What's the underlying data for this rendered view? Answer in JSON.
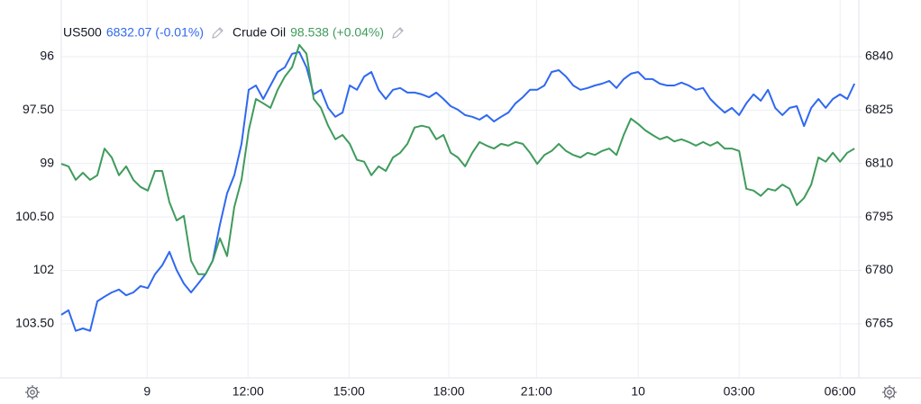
{
  "chart_data": {
    "type": "line",
    "xlim": [
      0,
      110.6
    ],
    "xticks": [
      {
        "value": 11.9,
        "label": "9"
      },
      {
        "value": 25.9,
        "label": "12:00"
      },
      {
        "value": 39.9,
        "label": "15:00"
      },
      {
        "value": 53.75,
        "label": "18:00"
      },
      {
        "value": 65.9,
        "label": "21:00"
      },
      {
        "value": 80,
        "label": "10"
      },
      {
        "value": 94,
        "label": "03:00"
      },
      {
        "value": 108,
        "label": "06:00"
      }
    ],
    "ylim": [
      105.02,
      94.41
    ],
    "yticks": [
      96,
      {
        "value": 97.5,
        "label": "97.50"
      },
      99,
      {
        "value": 100.5,
        "label": "100.50"
      },
      102,
      {
        "value": 103.5,
        "label": "103.50"
      }
    ],
    "y2lim": [
      6749.8,
      6855.9
    ],
    "y2ticks": [
      6840,
      6825,
      6810,
      6795,
      6780,
      6765
    ],
    "grid": true,
    "series": [
      {
        "name": "US500",
        "legend_value": "6832.07 (-0.01%)",
        "color": "#2f68f0",
        "axis": "y2",
        "values": [
          6767.5,
          6768.8,
          6763,
          6763.7,
          6763,
          6771.3,
          6772.6,
          6773.8,
          6774.6,
          6773,
          6773.8,
          6775.6,
          6775,
          6778.9,
          6781.4,
          6785.2,
          6780.1,
          6776.3,
          6773.8,
          6776.3,
          6778.9,
          6782.7,
          6792.8,
          6801.6,
          6806.7,
          6815.5,
          6830.7,
          6831.9,
          6828.1,
          6831.9,
          6835.7,
          6837,
          6840.8,
          6841.3,
          6837,
          6829.4,
          6830.7,
          6825.6,
          6823.1,
          6824.3,
          6831.9,
          6830.7,
          6834.4,
          6835.7,
          6830.7,
          6828.1,
          6830.7,
          6831.2,
          6829.9,
          6829.9,
          6829.4,
          6828.6,
          6829.9,
          6828.1,
          6826.1,
          6825.1,
          6823.6,
          6823.1,
          6822.3,
          6823.6,
          6821.8,
          6823.1,
          6824.3,
          6826.9,
          6828.6,
          6830.7,
          6830.7,
          6831.9,
          6835.7,
          6836.2,
          6834.4,
          6831.9,
          6830.7,
          6831.2,
          6831.9,
          6832.4,
          6833.2,
          6831.2,
          6833.7,
          6835.2,
          6835.7,
          6833.7,
          6833.7,
          6832.4,
          6831.9,
          6831.9,
          6832.7,
          6831.9,
          6830.7,
          6831.2,
          6828.1,
          6826.1,
          6824.3,
          6825.6,
          6823.6,
          6826.9,
          6829.4,
          6827.6,
          6830.7,
          6825.6,
          6823.6,
          6825.6,
          6826.1,
          6820.5,
          6825.6,
          6828.1,
          6825.6,
          6828.1,
          6829.4,
          6828.1,
          6832.4
        ]
      },
      {
        "name": "Crude Oil",
        "legend_value": "98.538 (+0.04%)",
        "color": "#3f9b5c",
        "axis": "y",
        "values": [
          99.01,
          99.08,
          99.46,
          99.26,
          99.46,
          99.33,
          98.58,
          98.83,
          99.33,
          99.08,
          99.46,
          99.66,
          99.76,
          99.21,
          99.21,
          100.09,
          100.6,
          100.47,
          101.73,
          102.11,
          102.11,
          101.73,
          101.1,
          101.6,
          100.22,
          99.46,
          98.07,
          97.19,
          97.31,
          97.44,
          96.93,
          96.56,
          96.3,
          95.67,
          95.92,
          97.19,
          97.44,
          97.94,
          98.32,
          98.2,
          98.45,
          98.9,
          98.95,
          99.33,
          99.08,
          99.21,
          98.83,
          98.7,
          98.45,
          97.99,
          97.94,
          97.99,
          98.32,
          98.2,
          98.7,
          98.83,
          99.08,
          98.7,
          98.4,
          98.5,
          98.58,
          98.45,
          98.5,
          98.4,
          98.45,
          98.7,
          99.01,
          98.76,
          98.65,
          98.45,
          98.65,
          98.76,
          98.83,
          98.7,
          98.76,
          98.65,
          98.58,
          98.76,
          98.2,
          97.74,
          97.89,
          98.07,
          98.2,
          98.32,
          98.25,
          98.38,
          98.32,
          98.4,
          98.5,
          98.4,
          98.5,
          98.4,
          98.58,
          98.58,
          98.65,
          99.71,
          99.76,
          99.91,
          99.71,
          99.76,
          99.59,
          99.71,
          100.17,
          99.97,
          99.59,
          98.83,
          98.95,
          98.7,
          98.95,
          98.7,
          98.58
        ]
      }
    ]
  }
}
